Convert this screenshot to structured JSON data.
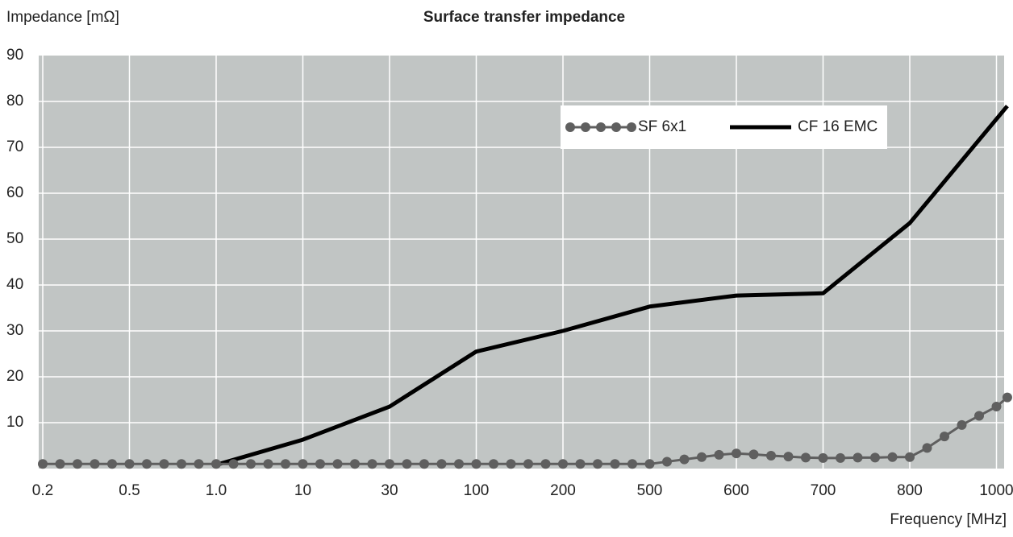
{
  "chart_data": {
    "type": "line",
    "title": "Surface transfer impedance",
    "y_label": "Impedance [mΩ]",
    "x_label": "Frequency [MHz]",
    "xlim": [
      0.2,
      1025
    ],
    "ylim": [
      0,
      90
    ],
    "xticks": [
      0.2,
      0.5,
      {
        "value": 1,
        "label": "1.0"
      },
      10,
      30,
      100,
      200,
      500,
      600,
      700,
      800,
      1000
    ],
    "yticks": [
      10,
      20,
      30,
      40,
      50,
      60,
      70,
      80,
      90
    ],
    "grid": true,
    "legend": "upper right",
    "series": [
      {
        "name": "SF 6x1",
        "color": "#5f5f5f",
        "marker": "circle",
        "x": [
          0.2,
          0.26,
          0.32,
          0.38,
          0.44,
          0.5,
          0.6,
          0.7,
          0.8,
          0.9,
          1,
          2.8,
          4.6,
          6.4,
          8.2,
          10,
          14,
          18,
          22,
          26,
          30,
          44,
          58,
          72,
          86,
          100,
          120,
          140,
          160,
          180,
          200,
          260,
          320,
          380,
          440,
          500,
          520,
          540,
          560,
          580,
          600,
          620,
          640,
          660,
          680,
          700,
          720,
          740,
          760,
          780,
          800,
          840,
          880,
          920,
          960,
          1000,
          1025
        ],
        "values": [
          1,
          1,
          1,
          1,
          1,
          1,
          1,
          1,
          1,
          1,
          1,
          1,
          1,
          1,
          1,
          1,
          1,
          1,
          1,
          1,
          1,
          1,
          1,
          1,
          1,
          1,
          1,
          1,
          1,
          1,
          1,
          1,
          1,
          1,
          1,
          1,
          1.5,
          2,
          2.5,
          3,
          3.3,
          3.1,
          2.8,
          2.6,
          2.4,
          2.3,
          2.3,
          2.4,
          2.4,
          2.5,
          2.5,
          4.5,
          7,
          9.5,
          11.5,
          13.5,
          15.5
        ]
      },
      {
        "name": "CF 16 EMC",
        "color": "#000000",
        "marker": "none",
        "x": [
          1,
          10,
          30,
          100,
          200,
          500,
          600,
          700,
          800,
          1025
        ],
        "values": [
          0.8,
          6.3,
          13.5,
          25.5,
          30,
          35.3,
          37.7,
          38.2,
          53.5,
          79
        ]
      }
    ]
  }
}
